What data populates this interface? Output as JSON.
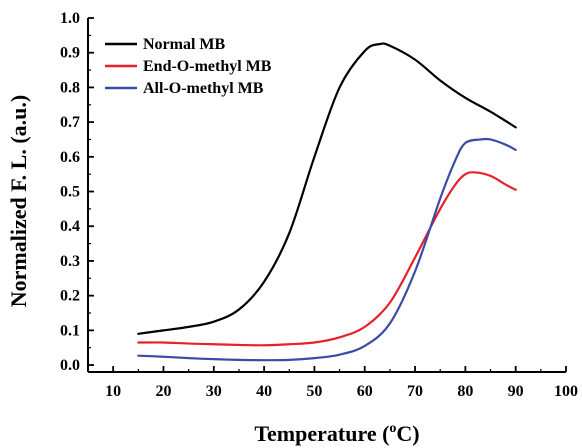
{
  "chart_data": {
    "type": "line",
    "xlabel": "Temperature (",
    "xlabel_sup": "o",
    "xlabel_suffix": "C)",
    "ylabel": "Normalized F. L. (a.u.)",
    "xlim": [
      5,
      100
    ],
    "ylim": [
      -0.02,
      1.0
    ],
    "x_ticks": [
      "10",
      "20",
      "30",
      "40",
      "50",
      "60",
      "70",
      "80",
      "90",
      "100"
    ],
    "y_ticks": [
      "0.0",
      "0.1",
      "0.2",
      "0.3",
      "0.4",
      "0.5",
      "0.6",
      "0.7",
      "0.8",
      "0.9",
      "1.0"
    ],
    "legend_position": "top-left",
    "series": [
      {
        "name": "Normal MB",
        "color": "#000000",
        "points": [
          [
            15,
            0.09
          ],
          [
            20,
            0.1
          ],
          [
            25,
            0.11
          ],
          [
            30,
            0.125
          ],
          [
            35,
            0.16
          ],
          [
            40,
            0.24
          ],
          [
            45,
            0.38
          ],
          [
            50,
            0.6
          ],
          [
            55,
            0.8
          ],
          [
            60,
            0.905
          ],
          [
            63,
            0.925
          ],
          [
            65,
            0.92
          ],
          [
            70,
            0.88
          ],
          [
            75,
            0.82
          ],
          [
            80,
            0.77
          ],
          [
            85,
            0.73
          ],
          [
            90,
            0.685
          ]
        ]
      },
      {
        "name": "End-O-methyl MB",
        "color": "#e8202a",
        "points": [
          [
            15,
            0.065
          ],
          [
            20,
            0.065
          ],
          [
            25,
            0.062
          ],
          [
            30,
            0.06
          ],
          [
            35,
            0.058
          ],
          [
            40,
            0.057
          ],
          [
            45,
            0.06
          ],
          [
            50,
            0.065
          ],
          [
            55,
            0.08
          ],
          [
            60,
            0.11
          ],
          [
            65,
            0.18
          ],
          [
            70,
            0.31
          ],
          [
            75,
            0.45
          ],
          [
            78,
            0.52
          ],
          [
            80,
            0.55
          ],
          [
            82,
            0.555
          ],
          [
            85,
            0.545
          ],
          [
            88,
            0.52
          ],
          [
            90,
            0.505
          ]
        ]
      },
      {
        "name": "All-O-methyl MB",
        "color": "#3a4ba8",
        "points": [
          [
            15,
            0.027
          ],
          [
            20,
            0.024
          ],
          [
            25,
            0.02
          ],
          [
            30,
            0.017
          ],
          [
            35,
            0.015
          ],
          [
            40,
            0.014
          ],
          [
            45,
            0.015
          ],
          [
            50,
            0.02
          ],
          [
            55,
            0.03
          ],
          [
            60,
            0.055
          ],
          [
            65,
            0.12
          ],
          [
            70,
            0.27
          ],
          [
            75,
            0.48
          ],
          [
            78,
            0.59
          ],
          [
            80,
            0.64
          ],
          [
            83,
            0.65
          ],
          [
            85,
            0.65
          ],
          [
            88,
            0.635
          ],
          [
            90,
            0.62
          ]
        ]
      }
    ]
  }
}
